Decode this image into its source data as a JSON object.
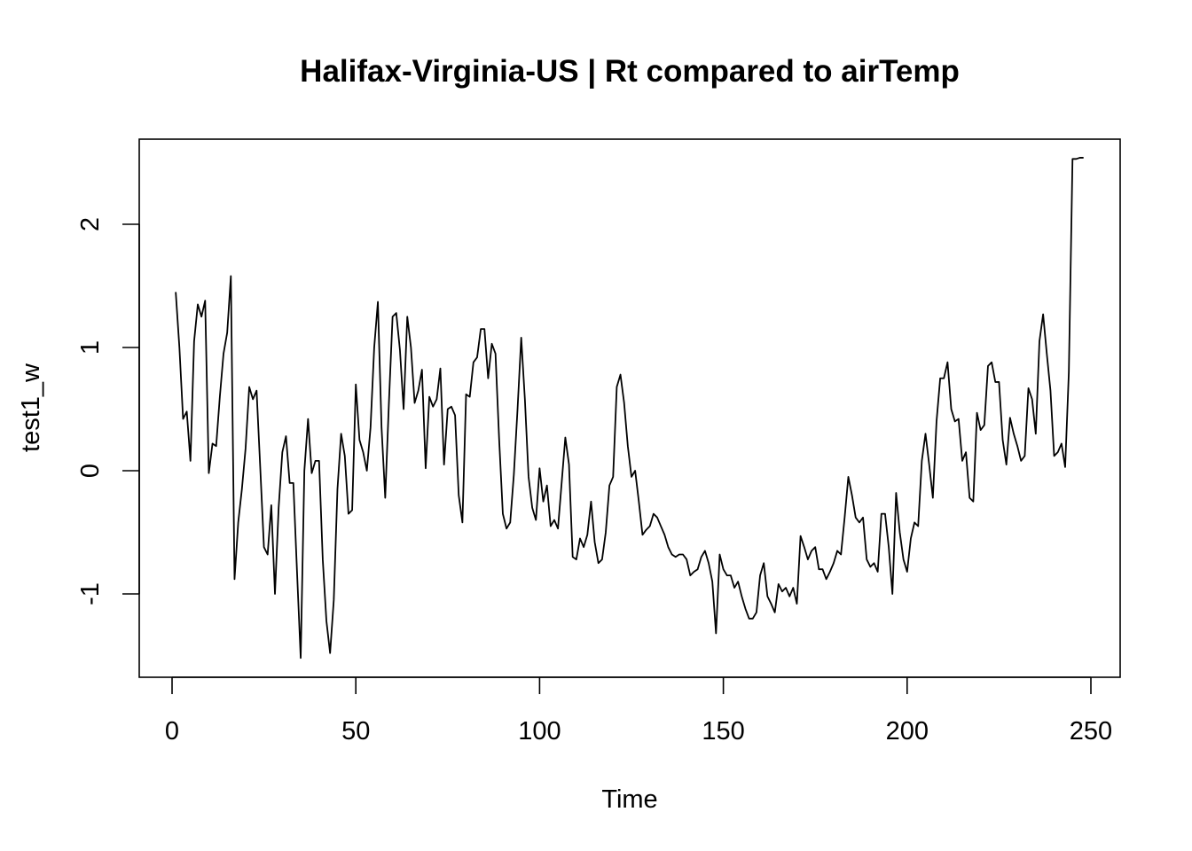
{
  "chart_data": {
    "type": "line",
    "title": "Halifax-Virginia-US | Rt compared to airTemp",
    "xlabel": "Time",
    "ylabel": "test1_w",
    "xlim": [
      0,
      250
    ],
    "ylim": [
      -1.5,
      2.5
    ],
    "grid": false,
    "x_ticks": [
      0,
      50,
      100,
      150,
      200,
      250
    ],
    "y_ticks": [
      -1,
      0,
      1,
      2
    ],
    "x_tick_labels": [
      "0",
      "50",
      "100",
      "150",
      "200",
      "250"
    ],
    "y_tick_labels": [
      "-1",
      "0",
      "1",
      "2"
    ],
    "series": [
      {
        "x_start": 1,
        "values": [
          1.45,
          1.0,
          0.42,
          0.48,
          0.08,
          1.05,
          1.35,
          1.25,
          1.38,
          -0.02,
          0.22,
          0.2,
          0.6,
          0.95,
          1.12,
          1.58,
          -0.88,
          -0.42,
          -0.15,
          0.18,
          0.68,
          0.58,
          0.65,
          0.02,
          -0.62,
          -0.68,
          -0.28,
          -1.0,
          -0.3,
          0.15,
          0.28,
          -0.1,
          -0.1,
          -0.82,
          -1.52,
          0.0,
          0.42,
          -0.02,
          0.08,
          0.08,
          -0.72,
          -1.22,
          -1.48,
          -1.05,
          -0.15,
          0.3,
          0.12,
          -0.35,
          -0.32,
          0.7,
          0.25,
          0.15,
          0.0,
          0.35,
          1.0,
          1.37,
          0.35,
          -0.22,
          0.55,
          1.25,
          1.28,
          0.98,
          0.5,
          1.25,
          1.0,
          0.55,
          0.65,
          0.82,
          0.02,
          0.6,
          0.52,
          0.58,
          0.83,
          0.05,
          0.5,
          0.52,
          0.45,
          -0.2,
          -0.42,
          0.62,
          0.6,
          0.88,
          0.92,
          1.15,
          1.15,
          0.75,
          1.03,
          0.95,
          0.25,
          -0.35,
          -0.47,
          -0.42,
          -0.03,
          0.5,
          1.08,
          0.58,
          -0.05,
          -0.3,
          -0.4,
          0.02,
          -0.25,
          -0.12,
          -0.45,
          -0.4,
          -0.47,
          -0.1,
          0.27,
          0.05,
          -0.7,
          -0.72,
          -0.55,
          -0.62,
          -0.52,
          -0.25,
          -0.58,
          -0.75,
          -0.72,
          -0.5,
          -0.12,
          -0.05,
          0.68,
          0.78,
          0.55,
          0.2,
          -0.05,
          0.0,
          -0.25,
          -0.52,
          -0.48,
          -0.45,
          -0.35,
          -0.38,
          -0.45,
          -0.52,
          -0.62,
          -0.68,
          -0.7,
          -0.68,
          -0.68,
          -0.72,
          -0.85,
          -0.82,
          -0.8,
          -0.7,
          -0.65,
          -0.75,
          -0.9,
          -1.32,
          -0.68,
          -0.8,
          -0.85,
          -0.85,
          -0.95,
          -0.9,
          -1.02,
          -1.12,
          -1.2,
          -1.2,
          -1.15,
          -0.85,
          -0.75,
          -1.02,
          -1.08,
          -1.15,
          -0.92,
          -0.98,
          -0.95,
          -1.02,
          -0.95,
          -1.08,
          -0.53,
          -0.62,
          -0.72,
          -0.65,
          -0.62,
          -0.8,
          -0.8,
          -0.88,
          -0.82,
          -0.75,
          -0.65,
          -0.68,
          -0.38,
          -0.05,
          -0.2,
          -0.38,
          -0.42,
          -0.38,
          -0.72,
          -0.78,
          -0.75,
          -0.82,
          -0.35,
          -0.35,
          -0.62,
          -1.0,
          -0.18,
          -0.5,
          -0.72,
          -0.82,
          -0.55,
          -0.42,
          -0.45,
          0.08,
          0.3,
          0.05,
          -0.22,
          0.4,
          0.75,
          0.75,
          0.88,
          0.5,
          0.4,
          0.42,
          0.08,
          0.15,
          -0.22,
          -0.25,
          0.47,
          0.33,
          0.37,
          0.85,
          0.88,
          0.72,
          0.72,
          0.25,
          0.05,
          0.43,
          0.3,
          0.2,
          0.08,
          0.12,
          0.67,
          0.58,
          0.3,
          1.05,
          1.27,
          0.95,
          0.65,
          0.12,
          0.15,
          0.22,
          0.03,
          0.8,
          2.53,
          2.53,
          2.54,
          2.54
        ]
      }
    ]
  }
}
